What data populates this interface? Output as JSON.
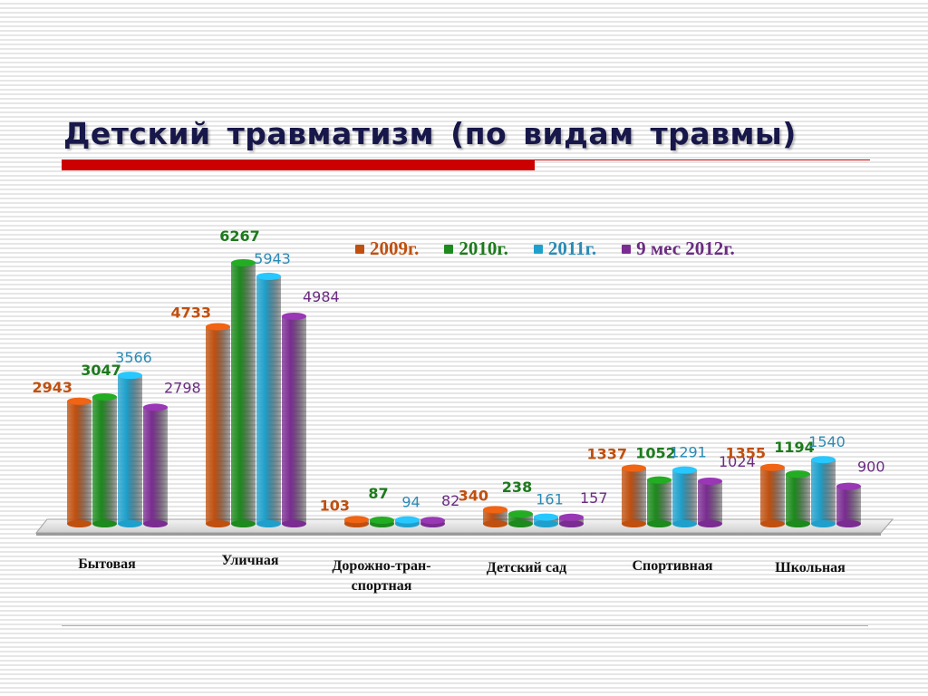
{
  "title": "Детский  травматизм  (по  видам  травмы)",
  "colors": {
    "2009": "#c0500f",
    "2010": "#1c8a1c",
    "2011": "#1fa0cc",
    "2012": "#7a2c91"
  },
  "chart_data": {
    "type": "bar",
    "categories": [
      "Бытовая",
      "Уличная",
      "Дорожно-тран-\nспортная",
      "Детский сад",
      "Спортивная",
      "Школьная"
    ],
    "series": [
      {
        "name": "2009г.",
        "values": [
          2943,
          4733,
          103,
          340,
          1337,
          1355
        ],
        "label_color": "#c0500f",
        "label_bold": true
      },
      {
        "name": "2010г.",
        "values": [
          3047,
          6267,
          87,
          238,
          1052,
          1194
        ],
        "label_color": "#1c7a1c",
        "label_bold": true
      },
      {
        "name": "2011г.",
        "values": [
          3566,
          5943,
          94,
          161,
          1291,
          1540
        ],
        "label_color": "#2a8bb5",
        "label_bold": false
      },
      {
        "name": "9 мес 2012г.",
        "values": [
          2798,
          4984,
          82,
          157,
          1024,
          900
        ],
        "label_color": "#6a2c80",
        "label_bold": false
      }
    ],
    "ylim": [
      0,
      6267
    ],
    "xlabel": "",
    "ylabel": "",
    "legend_position": "top-right"
  }
}
